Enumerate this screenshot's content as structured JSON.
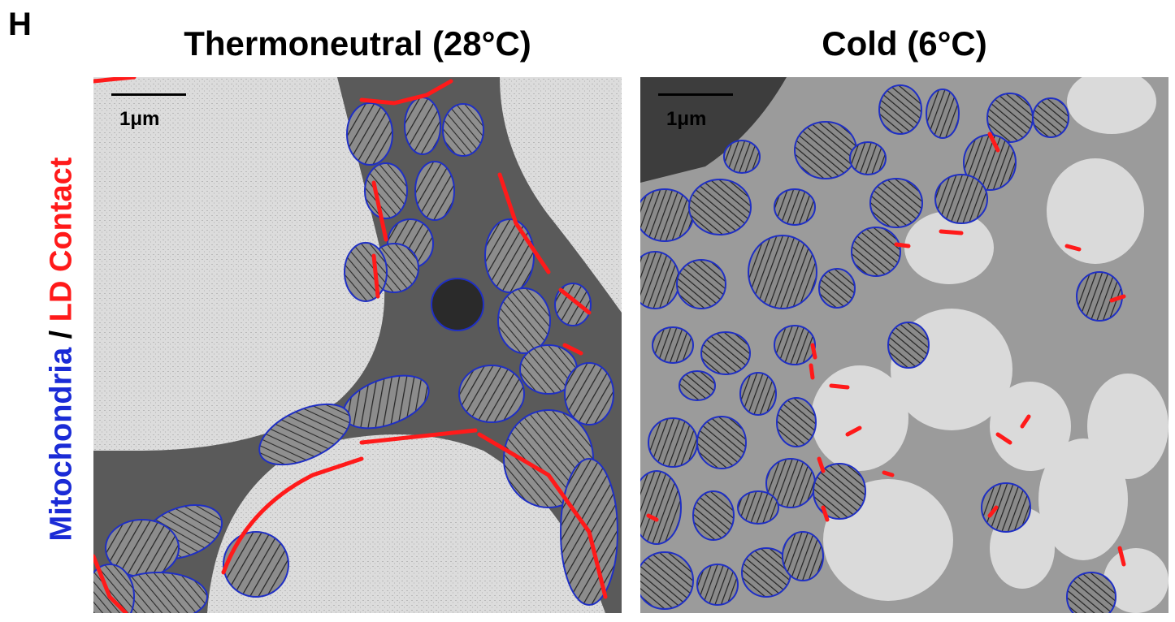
{
  "panel_letter": "H",
  "y_label": {
    "mito_text": "Mitochondria",
    "separator": " / ",
    "ld_text": "LD Contact",
    "mito_color": "#1a2bd6",
    "separator_color": "#000000",
    "ld_color": "#ff1a1a"
  },
  "panels": [
    {
      "title": "Thermoneutral (28°C)",
      "scale_label": "1μm"
    },
    {
      "title": "Cold (6°C)",
      "scale_label": "1μm"
    }
  ],
  "colors": {
    "mitochondria_outline": "#1f2fc4",
    "ld_contact": "#ff1a1a"
  }
}
